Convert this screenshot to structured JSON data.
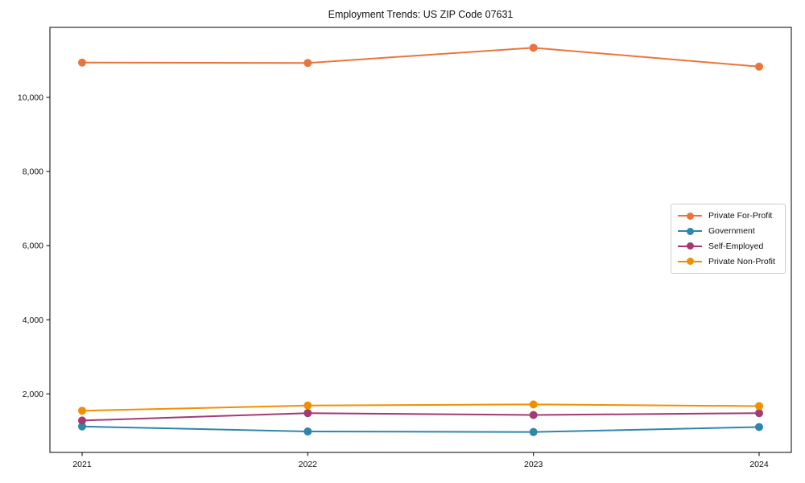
{
  "title": "Employment Trends: US ZIP Code 07631",
  "chart_data": {
    "type": "line",
    "title": "Employment Trends: US ZIP Code 07631",
    "categories": [
      "2021",
      "2022",
      "2023",
      "2024"
    ],
    "series": [
      {
        "name": "Private For-Profit",
        "color": "#E8763C",
        "values": [
          10940,
          10930,
          11340,
          10830
        ]
      },
      {
        "name": "Government",
        "color": "#2E86AB",
        "values": [
          1120,
          985,
          970,
          1105
        ]
      },
      {
        "name": "Self-Employed",
        "color": "#A23B72",
        "values": [
          1280,
          1480,
          1430,
          1480
        ]
      },
      {
        "name": "Private Non-Profit",
        "color": "#F18F01",
        "values": [
          1545,
          1685,
          1715,
          1670
        ]
      }
    ],
    "yticks": [
      2000,
      4000,
      6000,
      8000,
      10000
    ],
    "ytick_labels": [
      "2,000",
      "4,000",
      "6,000",
      "8,000",
      "10,000"
    ],
    "ylim": [
      420,
      11890
    ],
    "xlabel": "",
    "ylabel": "",
    "grid": false,
    "legend_position": "center right",
    "marker": "circle",
    "line_width": 2,
    "marker_radius": 5,
    "axis_color": "#000000",
    "background": "#ffffff"
  }
}
